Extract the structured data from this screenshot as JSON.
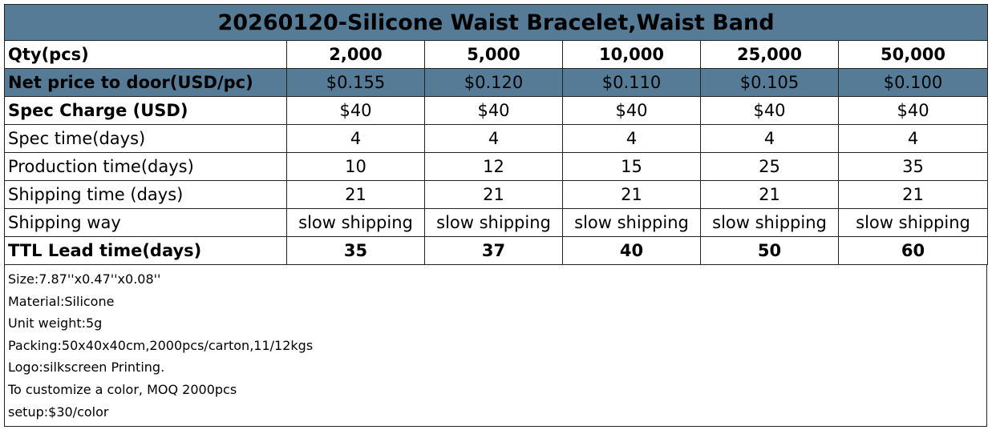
{
  "title": "20260120-Silicone Waist Bracelet,Waist Band",
  "table": {
    "rows": [
      {
        "label": "Qty(pcs)",
        "cells": [
          "2,000",
          "5,000",
          "10,000",
          "25,000",
          "50,000"
        ]
      },
      {
        "label": "Net price to door(USD/pc)",
        "cells": [
          "$0.155",
          "$0.120",
          "$0.110",
          "$0.105",
          "$0.100"
        ]
      },
      {
        "label": "Spec Charge (USD)",
        "cells": [
          "$40",
          "$40",
          "$40",
          "$40",
          "$40"
        ]
      },
      {
        "label": "Spec time(days)",
        "cells": [
          "4",
          "4",
          "4",
          "4",
          "4"
        ]
      },
      {
        "label": "Production time(days)",
        "cells": [
          "10",
          "12",
          "15",
          "25",
          "35"
        ]
      },
      {
        "label": "Shipping time (days)",
        "cells": [
          "21",
          "21",
          "21",
          "21",
          "21"
        ]
      },
      {
        "label": "Shipping way",
        "cells": [
          "slow shipping",
          "slow shipping",
          "slow shipping",
          "slow shipping",
          "slow shipping"
        ]
      },
      {
        "label": "TTL Lead time(days)",
        "cells": [
          "35",
          "37",
          "40",
          "50",
          "60"
        ]
      }
    ]
  },
  "notes": [
    "Size:7.87''x0.47''x0.08''",
    "Material:Silicone",
    "Unit weight:5g",
    "Packing:50x40x40cm,2000pcs/carton,11/12kgs",
    "Logo:silkscreen Printing.",
    "To customize a color, MOQ 2000pcs",
    "setup:$30/color"
  ]
}
